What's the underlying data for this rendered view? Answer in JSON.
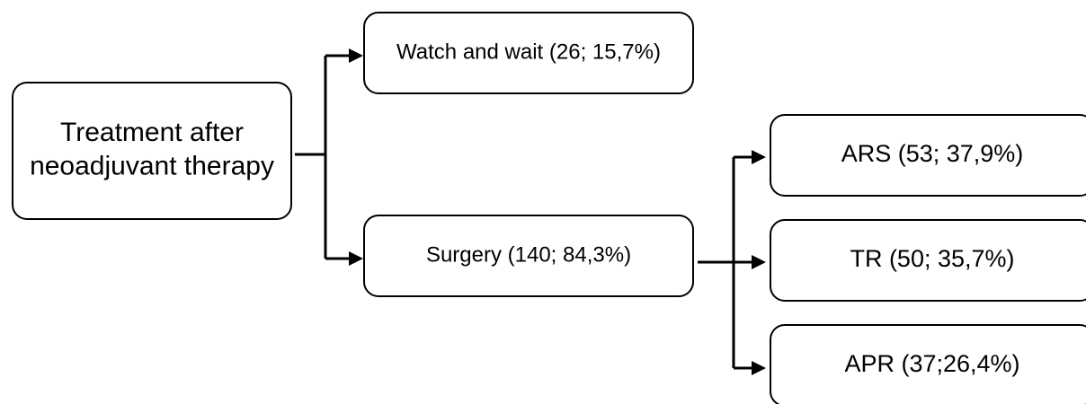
{
  "nodes": [
    {
      "label": [
        "Treatment after",
        "neoadjuvant therapy"
      ]
    },
    {
      "label": [
        "Watch and wait (26; 15,7%)"
      ]
    },
    {
      "label": [
        "Surgery (140; 84,3%)"
      ]
    },
    {
      "label": [
        "ARS (53; 37,9%)"
      ]
    },
    {
      "label": [
        "TR (50; 35,7%)"
      ]
    },
    {
      "label": [
        "APR (37;26,4%)"
      ]
    }
  ]
}
